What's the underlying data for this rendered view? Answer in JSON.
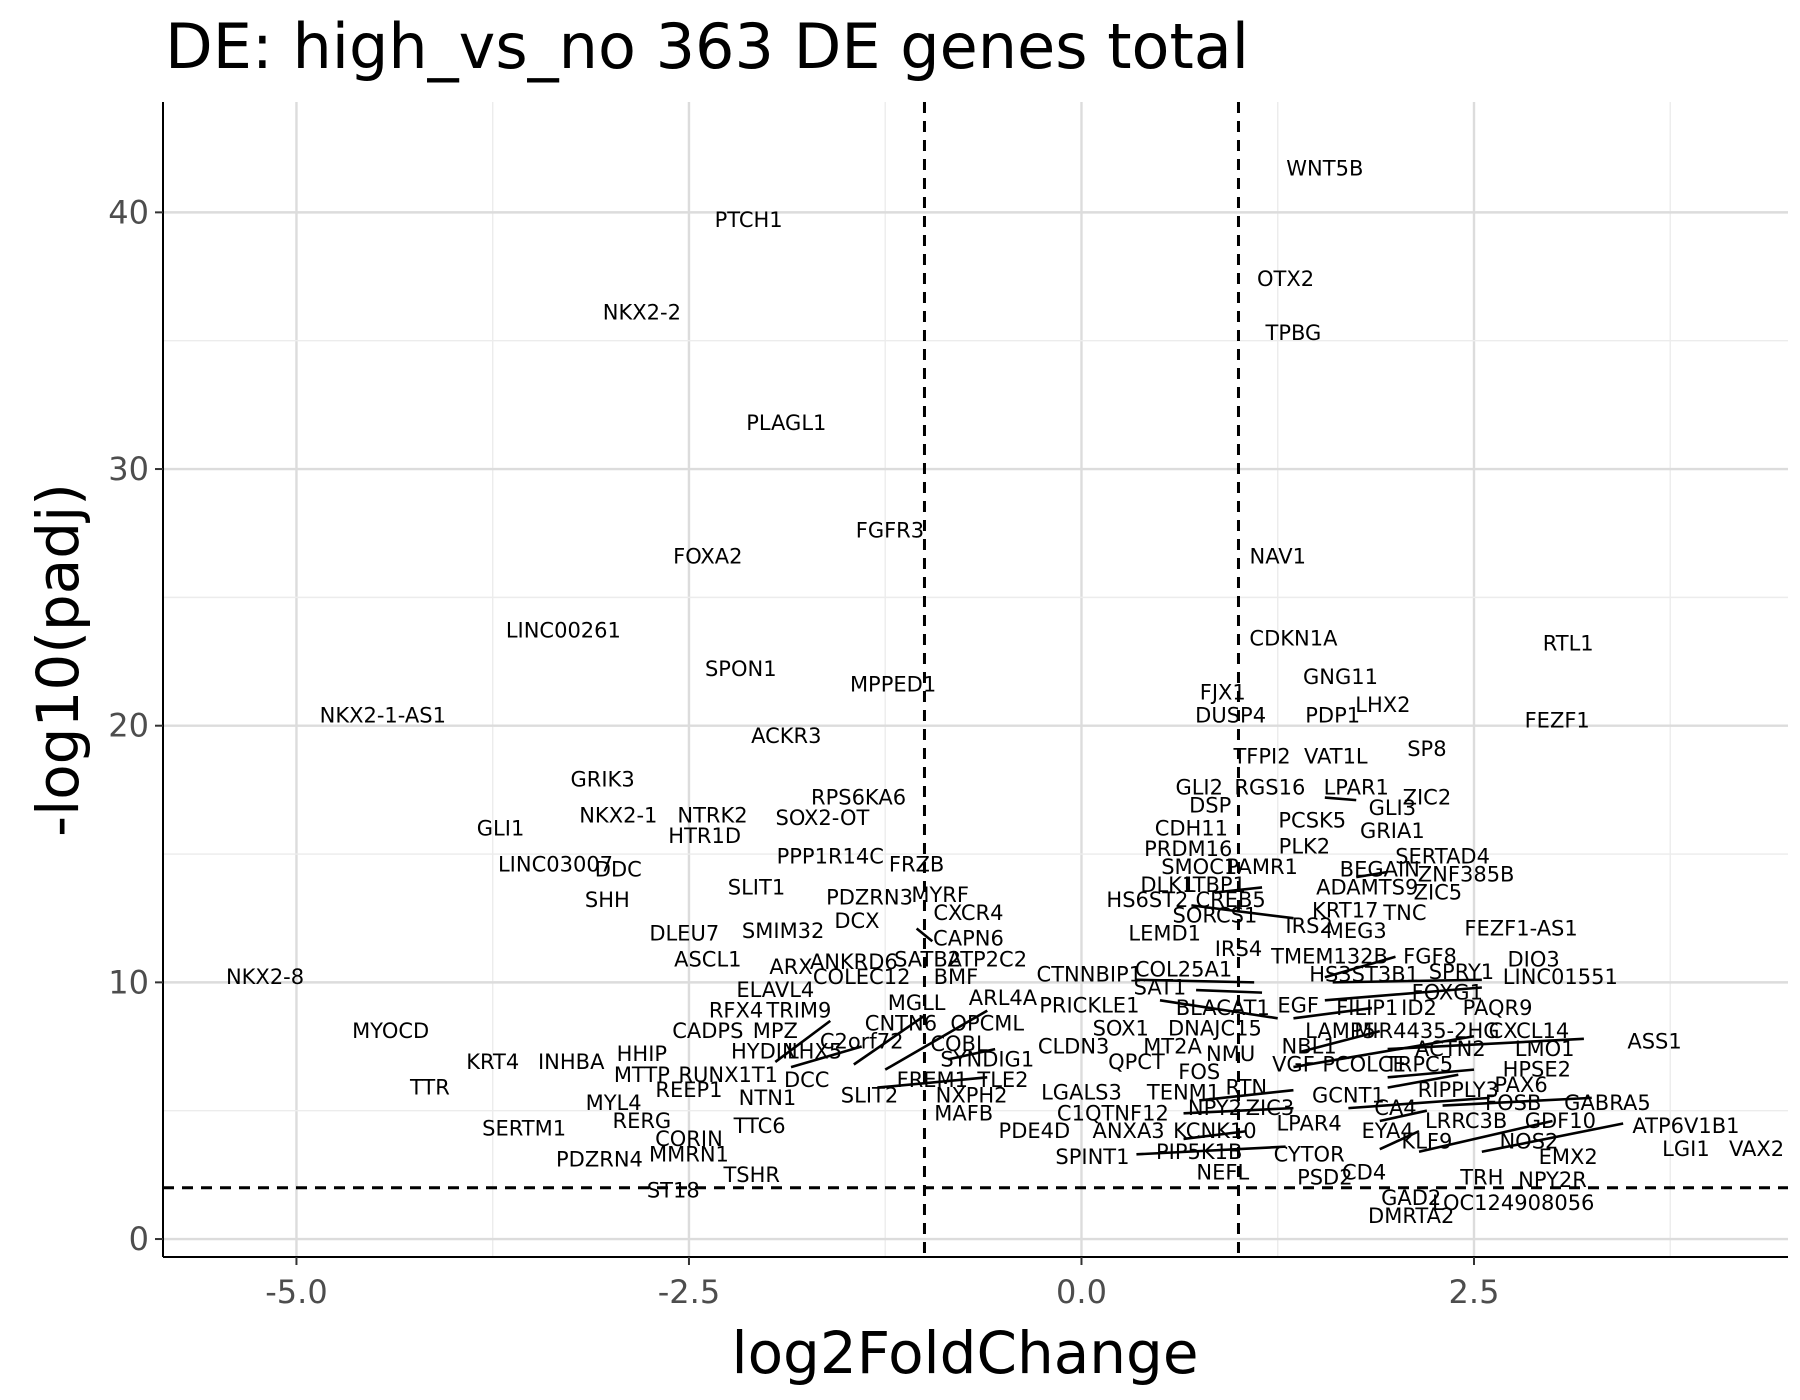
{
  "chart_data": {
    "type": "scatter",
    "title": "DE: high_vs_no 363 DE genes total",
    "xlabel": "log2FoldChange",
    "ylabel": "-log10(padj)",
    "xlim": [
      -5.85,
      4.5
    ],
    "ylim": [
      -0.7,
      44.3
    ],
    "x_ticks": [
      -5.0,
      -2.5,
      0.0,
      2.5
    ],
    "x_tick_labels": [
      "-5.0",
      "-2.5",
      "0.0",
      "2.5"
    ],
    "y_ticks": [
      0,
      10,
      20,
      30,
      40
    ],
    "y_tick_labels": [
      "0",
      "10",
      "20",
      "30",
      "40"
    ],
    "grid": true,
    "thresholds": {
      "log2fc": [
        -1.0,
        1.0
      ],
      "neg_log10_padj": 2.0
    },
    "points": [
      {
        "label": "WNT5B",
        "x": 1.55,
        "y": 41.7
      },
      {
        "label": "PTCH1",
        "x": -2.12,
        "y": 39.7
      },
      {
        "label": "OTX2",
        "x": 1.3,
        "y": 37.4
      },
      {
        "label": "NKX2-2",
        "x": -2.8,
        "y": 36.1
      },
      {
        "label": "TPBG",
        "x": 1.35,
        "y": 35.3
      },
      {
        "label": "PLAGL1",
        "x": -1.88,
        "y": 31.8
      },
      {
        "label": "FGFR3",
        "x": -1.22,
        "y": 27.6
      },
      {
        "label": "FOXA2",
        "x": -2.38,
        "y": 26.6
      },
      {
        "label": "NAV1",
        "x": 1.25,
        "y": 26.6
      },
      {
        "label": "LINC00261",
        "x": -3.3,
        "y": 23.7
      },
      {
        "label": "RTL1",
        "x": 3.1,
        "y": 23.2
      },
      {
        "label": "CDKN1A",
        "x": 1.35,
        "y": 23.4
      },
      {
        "label": "SPON1",
        "x": -2.17,
        "y": 22.2
      },
      {
        "label": "GNG11",
        "x": 1.65,
        "y": 21.9
      },
      {
        "label": "MPPED1",
        "x": -1.2,
        "y": 21.6
      },
      {
        "label": "FJX1",
        "x": 0.9,
        "y": 21.3
      },
      {
        "label": "LHX2",
        "x": 1.92,
        "y": 20.8
      },
      {
        "label": "NKX2-1-AS1",
        "x": -4.45,
        "y": 20.4
      },
      {
        "label": "DUSP4",
        "x": 0.95,
        "y": 20.4
      },
      {
        "label": "PDP1",
        "x": 1.6,
        "y": 20.4
      },
      {
        "label": "FEZF1",
        "x": 3.03,
        "y": 20.2
      },
      {
        "label": "ACKR3",
        "x": -1.88,
        "y": 19.6
      },
      {
        "label": "SP8",
        "x": 2.2,
        "y": 19.1
      },
      {
        "label": "TFPI2",
        "x": 1.15,
        "y": 18.8
      },
      {
        "label": "VAT1L",
        "x": 1.62,
        "y": 18.8
      },
      {
        "label": "GRIK3",
        "x": -3.05,
        "y": 17.9
      },
      {
        "label": "GLI2",
        "x": 0.75,
        "y": 17.6
      },
      {
        "label": "RGS16",
        "x": 1.2,
        "y": 17.6
      },
      {
        "label": "LPAR1",
        "x": 1.75,
        "y": 17.6
      },
      {
        "label": "ZIC2",
        "x": 2.2,
        "y": 17.2
      },
      {
        "label": "RPS6KA6",
        "x": -1.42,
        "y": 17.2
      },
      {
        "label": "GLI3",
        "x": 1.98,
        "y": 16.8
      },
      {
        "label": "DSP",
        "x": 0.82,
        "y": 16.9
      },
      {
        "label": "PCSK5",
        "x": 1.47,
        "y": 16.3
      },
      {
        "label": "NKX2-1",
        "x": -2.95,
        "y": 16.5
      },
      {
        "label": "NTRK2",
        "x": -2.35,
        "y": 16.5
      },
      {
        "label": "SOX2-OT",
        "x": -1.65,
        "y": 16.4
      },
      {
        "label": "GRIA1",
        "x": 1.98,
        "y": 15.9
      },
      {
        "label": "GLI1",
        "x": -3.7,
        "y": 16.0
      },
      {
        "label": "CDH11",
        "x": 0.7,
        "y": 16.0
      },
      {
        "label": "HTR1D",
        "x": -2.4,
        "y": 15.7
      },
      {
        "label": "PLK2",
        "x": 1.42,
        "y": 15.3
      },
      {
        "label": "PRDM16",
        "x": 0.68,
        "y": 15.2
      },
      {
        "label": "SERTAD4",
        "x": 2.3,
        "y": 14.9
      },
      {
        "label": "PPP1R14C",
        "x": -1.6,
        "y": 14.9
      },
      {
        "label": "SMOC1",
        "x": 0.75,
        "y": 14.5
      },
      {
        "label": "LINC03007",
        "x": -3.35,
        "y": 14.6
      },
      {
        "label": "PAMR1",
        "x": 1.15,
        "y": 14.5
      },
      {
        "label": "FRZB",
        "x": -1.05,
        "y": 14.6
      },
      {
        "label": "BEGAIN",
        "x": 1.9,
        "y": 14.4
      },
      {
        "label": "DDC",
        "x": -2.95,
        "y": 14.4
      },
      {
        "label": "ZNF385B",
        "x": 2.45,
        "y": 14.2
      },
      {
        "label": "DLK1",
        "x": 0.55,
        "y": 13.8
      },
      {
        "label": "LTBP1",
        "x": 0.85,
        "y": 13.8
      },
      {
        "label": "ADAMTS9",
        "x": 1.82,
        "y": 13.7
      },
      {
        "label": "SLIT1",
        "x": -2.07,
        "y": 13.7
      },
      {
        "label": "ZIC5",
        "x": 2.27,
        "y": 13.5
      },
      {
        "label": "MYRF",
        "x": -0.9,
        "y": 13.4
      },
      {
        "label": "PDZRN3",
        "x": -1.35,
        "y": 13.3
      },
      {
        "label": "SHH",
        "x": -3.02,
        "y": 13.2
      },
      {
        "label": "HS6ST2",
        "x": 0.42,
        "y": 13.2
      },
      {
        "label": "CREB5",
        "x": 0.95,
        "y": 13.2
      },
      {
        "label": "KRT17",
        "x": 1.68,
        "y": 12.8
      },
      {
        "label": "TNC",
        "x": 2.06,
        "y": 12.7
      },
      {
        "label": "CXCR4",
        "x": -0.72,
        "y": 12.7
      },
      {
        "label": "SORCS1",
        "x": 0.85,
        "y": 12.6
      },
      {
        "label": "IRS2",
        "x": 1.45,
        "y": 12.2
      },
      {
        "label": "FEZF1-AS1",
        "x": 2.8,
        "y": 12.1
      },
      {
        "label": "MEG3",
        "x": 1.75,
        "y": 12.0
      },
      {
        "label": "DCX",
        "x": -1.43,
        "y": 12.4
      },
      {
        "label": "DLEU7",
        "x": -2.53,
        "y": 11.9
      },
      {
        "label": "SMIM32",
        "x": -1.9,
        "y": 12.0
      },
      {
        "label": "LEMD1",
        "x": 0.53,
        "y": 11.9
      },
      {
        "label": "CAPN6",
        "x": -0.72,
        "y": 11.7
      },
      {
        "label": "FGF8",
        "x": 2.22,
        "y": 11.0
      },
      {
        "label": "IRS4",
        "x": 1.0,
        "y": 11.3
      },
      {
        "label": "TMEM132B",
        "x": 1.58,
        "y": 11.0
      },
      {
        "label": "DIO3",
        "x": 2.88,
        "y": 10.9
      },
      {
        "label": "ASCL1",
        "x": -2.38,
        "y": 10.9
      },
      {
        "label": "ARX",
        "x": -1.85,
        "y": 10.6
      },
      {
        "label": "ANKRD6",
        "x": -1.45,
        "y": 10.8
      },
      {
        "label": "SATB2",
        "x": -0.98,
        "y": 10.9
      },
      {
        "label": "ATP2C2",
        "x": -0.6,
        "y": 10.9
      },
      {
        "label": "COL25A1",
        "x": 0.65,
        "y": 10.5
      },
      {
        "label": "CTNNBIP1",
        "x": 0.05,
        "y": 10.3
      },
      {
        "label": "HS3ST3B1",
        "x": 1.8,
        "y": 10.3
      },
      {
        "label": "SPRY1",
        "x": 2.42,
        "y": 10.4
      },
      {
        "label": "LINC01551",
        "x": 3.05,
        "y": 10.2
      },
      {
        "label": "NKX2-8",
        "x": -5.2,
        "y": 10.2
      },
      {
        "label": "COLEC12",
        "x": -1.4,
        "y": 10.2
      },
      {
        "label": "BMF",
        "x": -0.8,
        "y": 10.2
      },
      {
        "label": "ELAVL4",
        "x": -1.95,
        "y": 9.7
      },
      {
        "label": "SAT1",
        "x": 0.5,
        "y": 9.8
      },
      {
        "label": "FOXG1",
        "x": 2.33,
        "y": 9.6
      },
      {
        "label": "ARL4A",
        "x": -0.5,
        "y": 9.4
      },
      {
        "label": "MGLL",
        "x": -1.05,
        "y": 9.2
      },
      {
        "label": "PRICKLE1",
        "x": 0.05,
        "y": 9.1
      },
      {
        "label": "BLACAT1",
        "x": 0.9,
        "y": 9.0
      },
      {
        "label": "EGF",
        "x": 1.38,
        "y": 9.1
      },
      {
        "label": "FILIP1",
        "x": 1.82,
        "y": 9.0
      },
      {
        "label": "ID2",
        "x": 2.15,
        "y": 9.0
      },
      {
        "label": "PAQR9",
        "x": 2.65,
        "y": 9.0
      },
      {
        "label": "RFX4",
        "x": -2.2,
        "y": 8.9
      },
      {
        "label": "TRIM9",
        "x": -1.8,
        "y": 8.9
      },
      {
        "label": "CNTN6",
        "x": -1.15,
        "y": 8.4
      },
      {
        "label": "OPCML",
        "x": -0.6,
        "y": 8.4
      },
      {
        "label": "SOX1",
        "x": 0.25,
        "y": 8.2
      },
      {
        "label": "DNAJC15",
        "x": 0.85,
        "y": 8.2
      },
      {
        "label": "LAMP5",
        "x": 1.65,
        "y": 8.1
      },
      {
        "label": "MIR4435-2HG",
        "x": 2.2,
        "y": 8.1
      },
      {
        "label": "CXCL14",
        "x": 2.85,
        "y": 8.1
      },
      {
        "label": "MYOCD",
        "x": -4.4,
        "y": 8.1
      },
      {
        "label": "CADPS",
        "x": -2.38,
        "y": 8.1
      },
      {
        "label": "MPZ",
        "x": -1.95,
        "y": 8.1
      },
      {
        "label": "C2orf72",
        "x": -1.4,
        "y": 7.7
      },
      {
        "label": "COBL",
        "x": -0.78,
        "y": 7.6
      },
      {
        "label": "ASS1",
        "x": 3.65,
        "y": 7.7
      },
      {
        "label": "HYDIN",
        "x": -2.02,
        "y": 7.3
      },
      {
        "label": "LHX5",
        "x": -1.7,
        "y": 7.3
      },
      {
        "label": "NBL1",
        "x": 1.45,
        "y": 7.5
      },
      {
        "label": "ACTN2",
        "x": 2.35,
        "y": 7.4
      },
      {
        "label": "LMO1",
        "x": 2.95,
        "y": 7.4
      },
      {
        "label": "HHIP",
        "x": -2.8,
        "y": 7.2
      },
      {
        "label": "CLDN3",
        "x": -0.05,
        "y": 7.5
      },
      {
        "label": "MT2A",
        "x": 0.58,
        "y": 7.5
      },
      {
        "label": "NMU",
        "x": 0.95,
        "y": 7.2
      },
      {
        "label": "SYNDIG1",
        "x": -0.6,
        "y": 7.0
      },
      {
        "label": "KRT4",
        "x": -3.75,
        "y": 6.9
      },
      {
        "label": "INHBA",
        "x": -3.25,
        "y": 6.9
      },
      {
        "label": "QPCT",
        "x": 0.35,
        "y": 6.9
      },
      {
        "label": "VGF",
        "x": 1.35,
        "y": 6.8
      },
      {
        "label": "PCOLCE",
        "x": 1.8,
        "y": 6.8
      },
      {
        "label": "TRPC5",
        "x": 2.15,
        "y": 6.8
      },
      {
        "label": "HPSE2",
        "x": 2.9,
        "y": 6.6
      },
      {
        "label": "MTTP",
        "x": -2.8,
        "y": 6.4
      },
      {
        "label": "RUNX1T1",
        "x": -2.25,
        "y": 6.4
      },
      {
        "label": "DCC",
        "x": -1.75,
        "y": 6.2
      },
      {
        "label": "FOS",
        "x": 0.75,
        "y": 6.5
      },
      {
        "label": "FREM1",
        "x": -0.95,
        "y": 6.2
      },
      {
        "label": "TLE2",
        "x": -0.5,
        "y": 6.2
      },
      {
        "label": "PAX6",
        "x": 2.8,
        "y": 6.0
      },
      {
        "label": "RIPPLY3",
        "x": 2.4,
        "y": 5.8
      },
      {
        "label": "TTR",
        "x": -4.15,
        "y": 5.9
      },
      {
        "label": "RTN",
        "x": 1.05,
        "y": 5.9
      },
      {
        "label": "LGALS3",
        "x": 0.0,
        "y": 5.7
      },
      {
        "label": "TENM1",
        "x": 0.65,
        "y": 5.7
      },
      {
        "label": "REEP1",
        "x": -2.5,
        "y": 5.8
      },
      {
        "label": "GCNT1",
        "x": 1.7,
        "y": 5.6
      },
      {
        "label": "SLIT2",
        "x": -1.35,
        "y": 5.6
      },
      {
        "label": "NXPH2",
        "x": -0.7,
        "y": 5.6
      },
      {
        "label": "NTN1",
        "x": -2.0,
        "y": 5.5
      },
      {
        "label": "MYL4",
        "x": -2.98,
        "y": 5.3
      },
      {
        "label": "FOSB",
        "x": 2.75,
        "y": 5.3
      },
      {
        "label": "GABRA5",
        "x": 3.35,
        "y": 5.3
      },
      {
        "label": "ZIC3",
        "x": 1.2,
        "y": 5.1
      },
      {
        "label": "NPY2",
        "x": 0.85,
        "y": 5.1
      },
      {
        "label": "CA4",
        "x": 2.0,
        "y": 5.1
      },
      {
        "label": "C1QTNF12",
        "x": 0.2,
        "y": 4.9
      },
      {
        "label": "MAFB",
        "x": -0.75,
        "y": 4.9
      },
      {
        "label": "RERG",
        "x": -2.8,
        "y": 4.6
      },
      {
        "label": "LRRC3B",
        "x": 2.45,
        "y": 4.6
      },
      {
        "label": "GDF10",
        "x": 3.05,
        "y": 4.6
      },
      {
        "label": "TTC6",
        "x": -2.05,
        "y": 4.4
      },
      {
        "label": "LPAR4",
        "x": 1.45,
        "y": 4.5
      },
      {
        "label": "SERTM1",
        "x": -3.55,
        "y": 4.3
      },
      {
        "label": "ATP6V1B1",
        "x": 3.85,
        "y": 4.4
      },
      {
        "label": "EYA4",
        "x": 1.95,
        "y": 4.2
      },
      {
        "label": "PDE4D",
        "x": -0.3,
        "y": 4.2
      },
      {
        "label": "ANXA3",
        "x": 0.3,
        "y": 4.2
      },
      {
        "label": "KCNK10",
        "x": 0.85,
        "y": 4.2
      },
      {
        "label": "KLF9",
        "x": 2.2,
        "y": 3.8
      },
      {
        "label": "NOS2",
        "x": 2.85,
        "y": 3.8
      },
      {
        "label": "CORIN",
        "x": -2.5,
        "y": 3.9
      },
      {
        "label": "LGI1",
        "x": 3.85,
        "y": 3.5
      },
      {
        "label": "VAX2",
        "x": 4.3,
        "y": 3.5
      },
      {
        "label": "PIP5K1B",
        "x": 0.75,
        "y": 3.4
      },
      {
        "label": "CYTOR",
        "x": 1.45,
        "y": 3.3
      },
      {
        "label": "EMX2",
        "x": 3.1,
        "y": 3.2
      },
      {
        "label": "SPINT1",
        "x": 0.07,
        "y": 3.2
      },
      {
        "label": "MMRN1",
        "x": -2.5,
        "y": 3.3
      },
      {
        "label": "PDZRN4",
        "x": -3.07,
        "y": 3.1
      },
      {
        "label": "NEFL",
        "x": 0.9,
        "y": 2.6
      },
      {
        "label": "CD4",
        "x": 1.8,
        "y": 2.6
      },
      {
        "label": "TSHR",
        "x": -2.1,
        "y": 2.5
      },
      {
        "label": "PSD2",
        "x": 1.55,
        "y": 2.4
      },
      {
        "label": "TRH",
        "x": 2.55,
        "y": 2.4
      },
      {
        "label": "NPY2R",
        "x": 3.0,
        "y": 2.3
      },
      {
        "label": "ST18",
        "x": -2.6,
        "y": 1.9
      },
      {
        "label": "GAD2",
        "x": 2.1,
        "y": 1.6
      },
      {
        "label": "LOC124908056",
        "x": 2.75,
        "y": 1.4
      },
      {
        "label": "DMRTA2",
        "x": 2.1,
        "y": 0.9
      }
    ],
    "segments": [
      {
        "x1": -0.95,
        "y1": 11.6,
        "x2": -1.05,
        "y2": 12.1
      },
      {
        "x1": -1.45,
        "y1": 6.8,
        "x2": -1.0,
        "y2": 8.7
      },
      {
        "x1": -1.25,
        "y1": 6.6,
        "x2": -0.6,
        "y2": 8.9
      },
      {
        "x1": -1.95,
        "y1": 6.9,
        "x2": -1.6,
        "y2": 8.5
      },
      {
        "x1": -1.85,
        "y1": 6.7,
        "x2": -1.4,
        "y2": 7.5
      },
      {
        "x1": -1.3,
        "y1": 5.9,
        "x2": -0.6,
        "y2": 6.3
      },
      {
        "x1": -0.85,
        "y1": 7.0,
        "x2": -0.55,
        "y2": 7.4
      },
      {
        "x1": 0.35,
        "y1": 10.1,
        "x2": 1.1,
        "y2": 10.0
      },
      {
        "x1": 0.73,
        "y1": 9.7,
        "x2": 1.15,
        "y2": 9.6
      },
      {
        "x1": 0.5,
        "y1": 9.3,
        "x2": 1.25,
        "y2": 8.6
      },
      {
        "x1": 1.35,
        "y1": 8.6,
        "x2": 1.85,
        "y2": 9.0
      },
      {
        "x1": 1.55,
        "y1": 9.3,
        "x2": 2.55,
        "y2": 9.8
      },
      {
        "x1": 1.6,
        "y1": 10.0,
        "x2": 2.55,
        "y2": 10.1
      },
      {
        "x1": 1.55,
        "y1": 10.2,
        "x2": 2.0,
        "y2": 11.0
      },
      {
        "x1": 1.4,
        "y1": 7.3,
        "x2": 1.9,
        "y2": 8.1
      },
      {
        "x1": 1.35,
        "y1": 6.7,
        "x2": 2.5,
        "y2": 7.9
      },
      {
        "x1": 1.95,
        "y1": 7.4,
        "x2": 3.2,
        "y2": 7.8
      },
      {
        "x1": 1.95,
        "y1": 6.3,
        "x2": 2.5,
        "y2": 6.6
      },
      {
        "x1": 1.95,
        "y1": 5.9,
        "x2": 2.4,
        "y2": 6.4
      },
      {
        "x1": 1.7,
        "y1": 5.1,
        "x2": 2.6,
        "y2": 5.5
      },
      {
        "x1": 2.3,
        "y1": 5.2,
        "x2": 3.25,
        "y2": 5.5
      },
      {
        "x1": 1.9,
        "y1": 4.6,
        "x2": 2.2,
        "y2": 5.0
      },
      {
        "x1": 1.9,
        "y1": 3.5,
        "x2": 2.15,
        "y2": 4.2
      },
      {
        "x1": 2.15,
        "y1": 3.4,
        "x2": 3.0,
        "y2": 4.6
      },
      {
        "x1": 2.55,
        "y1": 3.4,
        "x2": 3.45,
        "y2": 4.5
      },
      {
        "x1": 0.75,
        "y1": 5.4,
        "x2": 1.35,
        "y2": 5.8
      },
      {
        "x1": 0.65,
        "y1": 4.9,
        "x2": 1.35,
        "y2": 5.1
      },
      {
        "x1": 0.65,
        "y1": 3.9,
        "x2": 1.05,
        "y2": 4.2
      },
      {
        "x1": 0.35,
        "y1": 3.3,
        "x2": 1.3,
        "y2": 3.6
      },
      {
        "x1": 0.85,
        "y1": 13.5,
        "x2": 1.15,
        "y2": 13.7
      },
      {
        "x1": 0.7,
        "y1": 13.0,
        "x2": 1.35,
        "y2": 12.5
      },
      {
        "x1": 1.55,
        "y1": 17.2,
        "x2": 1.75,
        "y2": 17.1
      },
      {
        "x1": 1.75,
        "y1": 14.1,
        "x2": 1.95,
        "y2": 14.3
      }
    ]
  }
}
